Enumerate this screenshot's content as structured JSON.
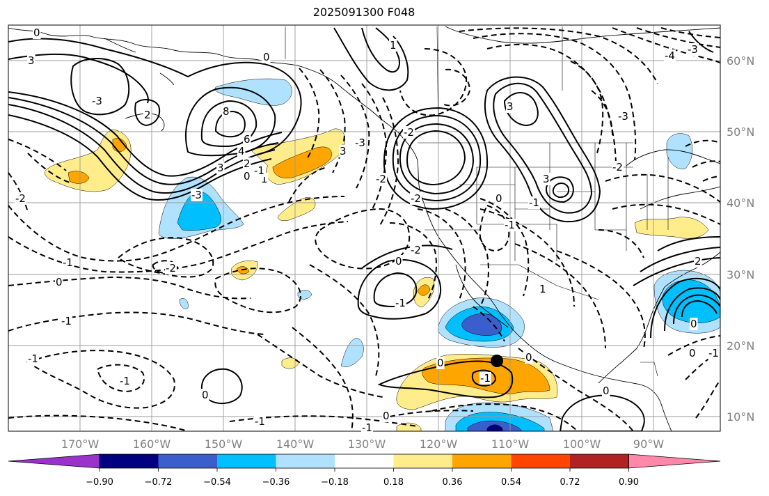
{
  "title": "2025091300 F048",
  "latitudes": [
    {
      "label": "60°N"
    },
    {
      "label": "50°N"
    },
    {
      "label": "40°N"
    },
    {
      "label": "30°N"
    },
    {
      "label": "20°N"
    },
    {
      "label": "10°N"
    }
  ],
  "longitudes": [
    {
      "label": "170°W"
    },
    {
      "label": "160°W"
    },
    {
      "label": "150°W"
    },
    {
      "label": "140°W"
    },
    {
      "label": "130°W"
    },
    {
      "label": "120°W"
    },
    {
      "label": "110°W"
    },
    {
      "label": "100°W"
    },
    {
      "label": "90°W"
    }
  ],
  "colorbar": {
    "ticks": [
      "−0.90",
      "−0.72",
      "−0.54",
      "−0.36",
      "−0.18",
      "0.18",
      "0.36",
      "0.54",
      "0.72",
      "0.90"
    ],
    "colors": [
      "#9933cc",
      "#000080",
      "#3a5fcd",
      "#00bfff",
      "#b0e2ff",
      "#ffffff",
      "#ffec8b",
      "#ffa500",
      "#ff4500",
      "#b22222",
      "#ff88aa"
    ]
  },
  "contour_labels": [
    "0",
    "3",
    "2",
    "-2",
    "-1",
    "0",
    "-1",
    "-1",
    "-2",
    "-3",
    "0",
    "8",
    "6",
    "4",
    "3",
    "2",
    "0",
    "-3",
    "1",
    "-1",
    "1",
    "3",
    "-3",
    "-2",
    "-2",
    "-2",
    "-1",
    "0",
    "3",
    "-4",
    "3",
    "-3",
    "-2",
    "-1",
    "0",
    "-2",
    "-1",
    "1",
    "0",
    "-1",
    "0",
    "0",
    "0",
    "-1",
    "-1",
    "-1",
    "0",
    "-3",
    "-1",
    "2",
    "0",
    "0"
  ],
  "marker": {
    "lon_label": "110°W",
    "lat_label": "18°N"
  }
}
